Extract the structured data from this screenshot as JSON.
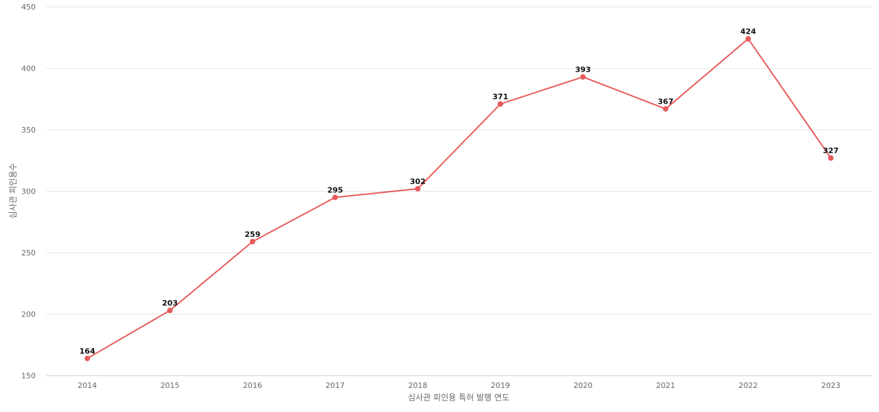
{
  "chart_data": {
    "type": "line",
    "title": "",
    "xlabel": "심사관 피인용 특허 발행 연도",
    "ylabel": "심사관 피인용수",
    "categories": [
      "2014",
      "2015",
      "2016",
      "2017",
      "2018",
      "2019",
      "2020",
      "2021",
      "2022",
      "2023"
    ],
    "values": [
      164,
      203,
      259,
      295,
      302,
      371,
      393,
      367,
      424,
      327
    ],
    "ylim": [
      150,
      450
    ],
    "yticks": [
      150,
      200,
      250,
      300,
      350,
      400,
      450
    ],
    "grid": true,
    "series_color": "#e85a5a",
    "data_labels": true
  }
}
